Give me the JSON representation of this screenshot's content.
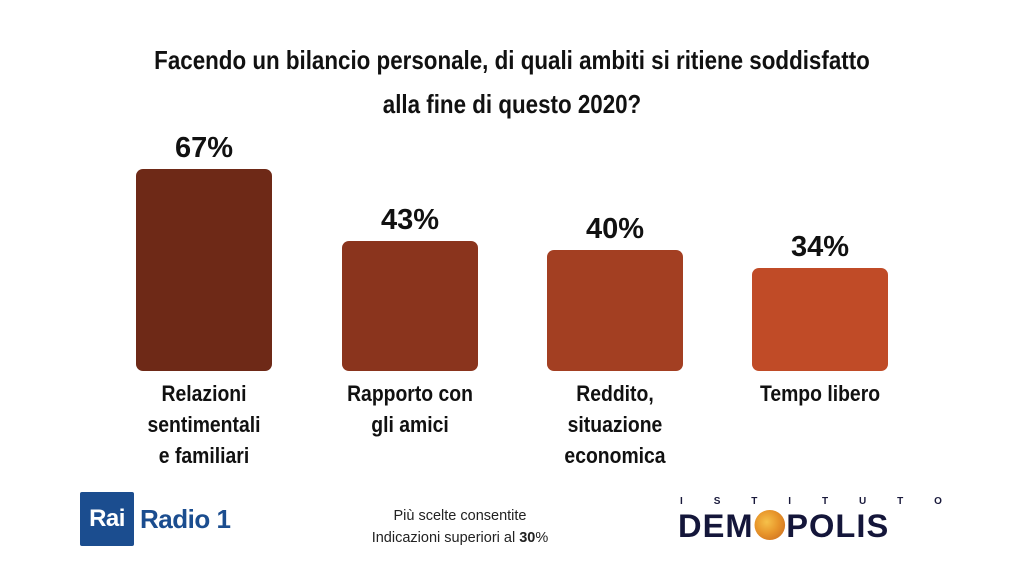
{
  "title_lines": [
    "Facendo un bilancio personale, di quali ambiti si ritiene soddisfatto",
    "alla fine di questo 2020?"
  ],
  "chart_data": {
    "type": "bar",
    "title": "Facendo un bilancio personale, di quali ambiti si ritiene soddisfatto alla fine di questo 2020?",
    "categories": [
      "Relazioni sentimentali e familiari",
      "Rapporto con gli amici",
      "Reddito, situazione economica",
      "Tempo libero"
    ],
    "category_lines": [
      [
        "Relazioni",
        "sentimentali",
        "e familiari"
      ],
      [
        "Rapporto con",
        "gli amici"
      ],
      [
        "Reddito,",
        "situazione",
        "economica"
      ],
      [
        "Tempo libero"
      ]
    ],
    "values": [
      67,
      43,
      40,
      34
    ],
    "value_labels": [
      "67%",
      "43%",
      "40%",
      "34%"
    ],
    "unit": "%",
    "ylim": [
      0,
      67
    ],
    "grid": false,
    "colors": [
      "#6e2917",
      "#8a341d",
      "#a33f22",
      "#c04b27"
    ]
  },
  "footer": {
    "rai_box": "Rai",
    "radio_label": "Radio 1",
    "note_line1": "Più scelte consentite",
    "note_line2_prefix": "Indicazioni superiori al ",
    "note_line2_value": "30",
    "note_line2_suffix": "%",
    "demopolis_small": "ISTITUTO",
    "demopolis_pre": "DEM",
    "demopolis_post": "POLIS"
  }
}
